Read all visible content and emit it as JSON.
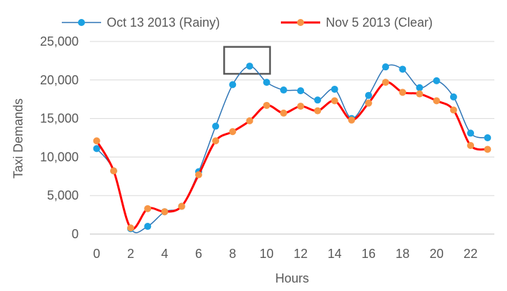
{
  "chart_data": {
    "type": "line",
    "title": "",
    "xlabel": "Hours",
    "ylabel": "Taxi Demands",
    "xlim": [
      -0.4,
      23.4
    ],
    "ylim": [
      0,
      25000
    ],
    "grid": true,
    "legend_position": "top",
    "x_ticks": [
      0,
      2,
      4,
      6,
      8,
      10,
      12,
      14,
      16,
      18,
      20,
      22
    ],
    "x_tick_labels": [
      "0",
      "2",
      "4",
      "6",
      "8",
      "10",
      "12",
      "14",
      "16",
      "18",
      "20",
      "22"
    ],
    "y_ticks": [
      0,
      5000,
      10000,
      15000,
      20000,
      25000
    ],
    "y_tick_labels": [
      "0",
      "5,000",
      "10,000",
      "15,000",
      "20,000",
      "25,000"
    ],
    "x": [
      0,
      1,
      2,
      3,
      4,
      5,
      6,
      7,
      8,
      9,
      10,
      11,
      12,
      13,
      14,
      15,
      16,
      17,
      18,
      19,
      20,
      21,
      22,
      23
    ],
    "series": [
      {
        "name": "Oct 13 2013 (Rainy)",
        "color": "#2E75B6",
        "marker_color": "#1BA1E2",
        "values": [
          11100,
          8200,
          700,
          1000,
          2900,
          3600,
          8100,
          14000,
          19400,
          21800,
          19700,
          18700,
          18600,
          17400,
          18800,
          15000,
          18000,
          21700,
          21400,
          19000,
          19900,
          17800,
          13100,
          12500
        ]
      },
      {
        "name": "Nov 5 2013 (Clear)",
        "color": "#FF0000",
        "marker_color": "#F79646",
        "values": [
          12100,
          8200,
          800,
          3300,
          2900,
          3600,
          7700,
          12100,
          13300,
          14700,
          16700,
          15700,
          16600,
          16000,
          17300,
          14800,
          17000,
          19700,
          18400,
          18200,
          17300,
          16100,
          11500,
          11000
        ]
      }
    ],
    "annotations": [
      {
        "type": "box",
        "x_range": [
          7.5,
          10.2
        ],
        "y_range": [
          20800,
          24300
        ],
        "color": "#595959"
      }
    ]
  }
}
